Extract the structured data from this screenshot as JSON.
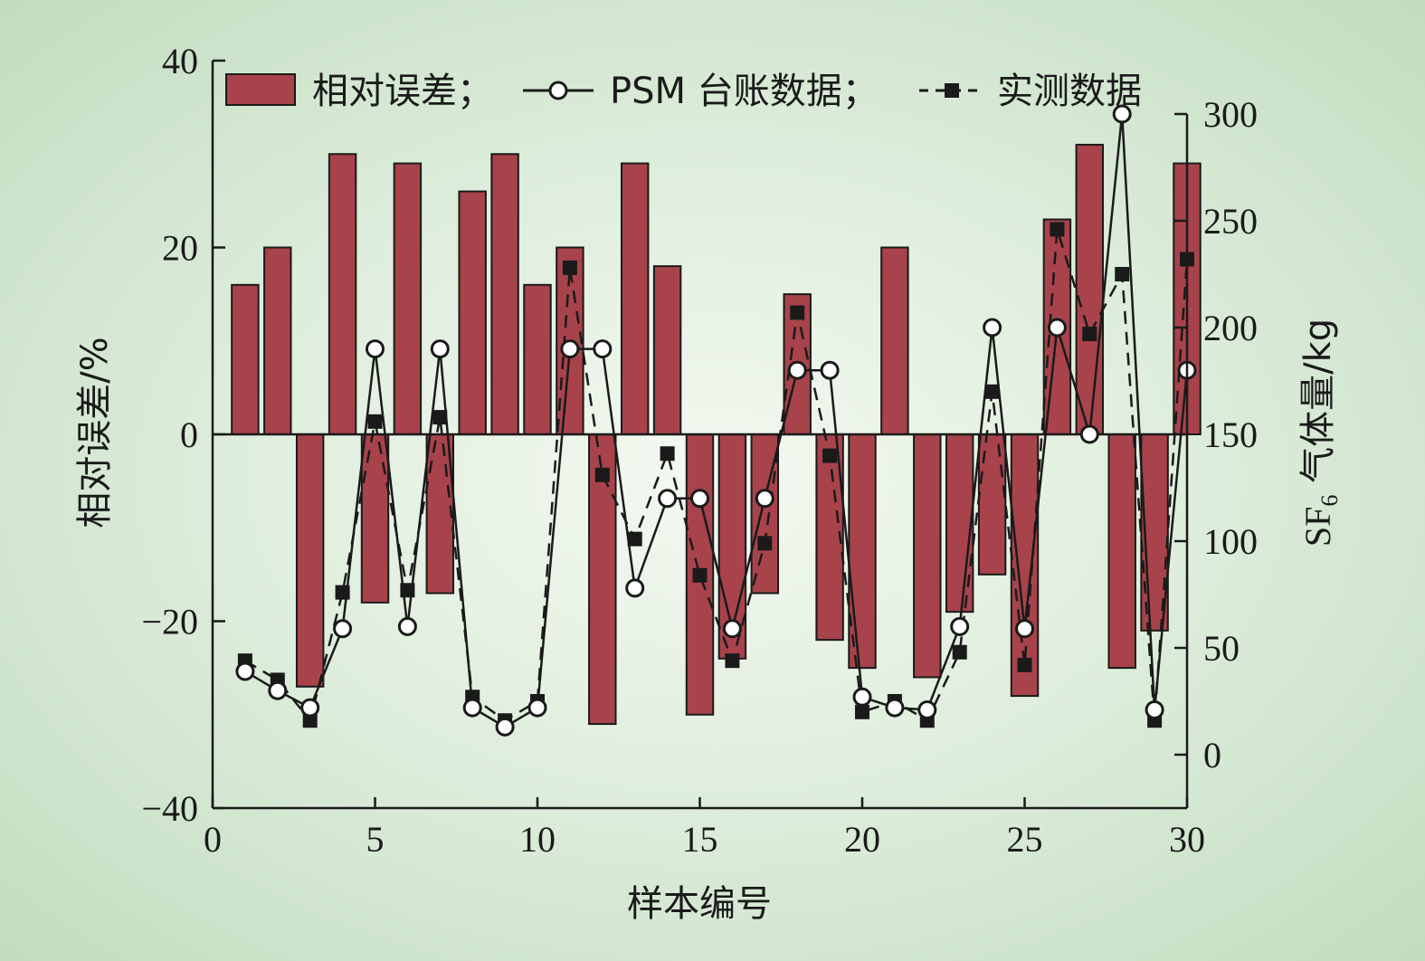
{
  "chart_data": {
    "type": "bar+line",
    "xlabel": "样本编号",
    "ylabel_left": "相对误差/%",
    "ylabel_right_main": "SF",
    "ylabel_right_sub": "6",
    "ylabel_right_rest": " 气体量/kg",
    "xlim": [
      0,
      30
    ],
    "ylim_left": [
      -40,
      40
    ],
    "ylim_right": [
      -25,
      325
    ],
    "xticks": [
      0,
      5,
      10,
      15,
      20,
      25,
      30
    ],
    "yticks_left": [
      -40,
      -20,
      0,
      20,
      40
    ],
    "yticks_right": [
      0,
      50,
      100,
      150,
      200,
      250,
      300
    ],
    "legend": {
      "bar_label": "相对误差；",
      "series1_label": "PSM 台账数据；",
      "series2_label": "实测数据"
    },
    "colors": {
      "bar": "#a8434b",
      "line": "#1a1a1a"
    },
    "x": [
      1,
      2,
      3,
      4,
      5,
      6,
      7,
      8,
      9,
      10,
      11,
      12,
      13,
      14,
      15,
      16,
      17,
      18,
      19,
      20,
      21,
      22,
      23,
      24,
      25,
      26,
      27,
      28,
      29,
      30
    ],
    "relative_error": [
      16,
      20,
      -27,
      30,
      -18,
      29,
      -17,
      26,
      30,
      16,
      20,
      -31,
      29,
      18,
      -30,
      -24,
      -17,
      15,
      -22,
      -25,
      20,
      -26,
      -19,
      -15,
      -28,
      23,
      31,
      -25,
      -21,
      29
    ],
    "psm_data": [
      39,
      30,
      22,
      59,
      190,
      60,
      190,
      22,
      13,
      22,
      190,
      190,
      78,
      120,
      120,
      59,
      120,
      180,
      180,
      27,
      22,
      21,
      60,
      200,
      59,
      200,
      150,
      300,
      21,
      180
    ],
    "measured_data": [
      44,
      35,
      16,
      76,
      156,
      77,
      158,
      27,
      16,
      25,
      228,
      131,
      101,
      141,
      84,
      44,
      99,
      207,
      140,
      20,
      25,
      16,
      48,
      170,
      42,
      246,
      197,
      225,
      16,
      232
    ]
  }
}
